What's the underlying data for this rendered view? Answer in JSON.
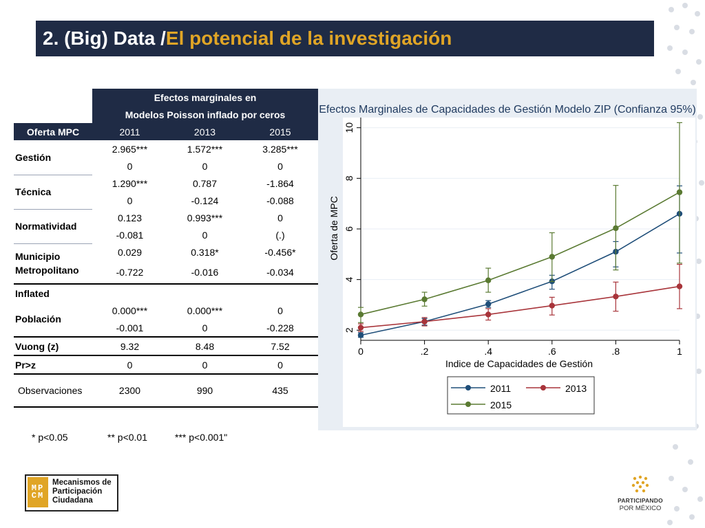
{
  "title": {
    "prefix": "2. (Big) Data / ",
    "accent": "El potencial de la investigación"
  },
  "table": {
    "header_line1": "Efectos marginales en",
    "header_line2": "Modelos Poisson inflado por ceros",
    "row_header": "Oferta MPC",
    "years": [
      "2011",
      "2013",
      "2015"
    ],
    "gestion": {
      "label": "Gestión",
      "coef": [
        "2.965***",
        "1.572***",
        "3.285***"
      ],
      "se": [
        "0",
        "0",
        "0"
      ]
    },
    "tecnica": {
      "label": "Técnica",
      "coef": [
        "1.290***",
        "0.787",
        "-1.864"
      ],
      "se": [
        "0",
        "-0.124",
        "-0.088"
      ]
    },
    "normatividad": {
      "label": "Normatividad",
      "coef": [
        "0.123",
        "0.993***",
        "0"
      ],
      "se": [
        "-0.081",
        "0",
        "(.)"
      ]
    },
    "municipio": {
      "label": "Municipio Metropolitano",
      "coef": [
        "0.029",
        "0.318*",
        "-0.456*"
      ],
      "se": [
        "-0.722",
        "-0.016",
        "-0.034"
      ]
    },
    "inflated": {
      "label": "Inflated"
    },
    "poblacion": {
      "label": "Población",
      "coef": [
        "0.000***",
        "0.000***",
        "0"
      ],
      "se": [
        "-0.001",
        "0",
        "-0.228"
      ]
    },
    "vuong": {
      "label": "Vuong (z)",
      "values": [
        "9.32",
        "8.48",
        "7.52"
      ]
    },
    "prz": {
      "label": "Pr>z",
      "values": [
        "0",
        "0",
        "0"
      ]
    },
    "observaciones": {
      "label": "Observaciones",
      "values": [
        "2300",
        "990",
        "435"
      ]
    }
  },
  "notes": {
    "n1": "* p<0.05",
    "n2": "** p<0.01",
    "n3": "*** p<0.001\""
  },
  "logos": {
    "mpcm_glyph": [
      "MP",
      "CM"
    ],
    "mpcm_line1": "Mecanismos de",
    "mpcm_line2": "Participación",
    "mpcm_line3": "Ciudadana",
    "ppm_line1": "PARTICIPANDO",
    "ppm_line2": "POR MÉXICO"
  },
  "colors": {
    "navy": "#1f2b45",
    "accent": "#e0a526",
    "s2011": "#1f4e79",
    "s2013": "#a8343a",
    "s2015": "#5a7a32"
  },
  "chart_data": {
    "type": "line",
    "title": "Efectos Marginales de Capacidades de Gestión Modelo ZIP (Confianza 95%)",
    "xlabel": "Indice de Capacidades de Gestión",
    "ylabel": "Oferta de MPC",
    "xlim": [
      0,
      1
    ],
    "ylim": [
      1.6,
      10.4
    ],
    "x": [
      0,
      0.2,
      0.4,
      0.6,
      0.8,
      1
    ],
    "xticks": [
      "0",
      ".2",
      ".4",
      ".6",
      ".8",
      "1"
    ],
    "xtick_values": [
      0,
      0.2,
      0.4,
      0.6,
      0.8,
      1
    ],
    "yticks": [
      "2",
      "4",
      "6",
      "8",
      "10"
    ],
    "ytick_values": [
      2,
      4,
      6,
      8,
      10
    ],
    "legend_position": "bottom",
    "series": [
      {
        "name": "2011",
        "color": "#1f4e79",
        "values": [
          1.8,
          2.34,
          3.03,
          3.93,
          5.1,
          6.6
        ],
        "lower": [
          1.72,
          2.2,
          2.9,
          3.62,
          4.5,
          5.05
        ],
        "upper": [
          1.9,
          2.46,
          3.17,
          4.17,
          5.5,
          7.7
        ]
      },
      {
        "name": "2013",
        "color": "#a8343a",
        "values": [
          2.1,
          2.34,
          2.62,
          2.97,
          3.33,
          3.73
        ],
        "lower": [
          1.95,
          2.17,
          2.4,
          2.6,
          2.75,
          2.85
        ],
        "upper": [
          2.25,
          2.5,
          2.85,
          3.3,
          3.9,
          4.6
        ]
      },
      {
        "name": "2015",
        "color": "#5a7a32",
        "values": [
          2.62,
          3.22,
          3.97,
          4.9,
          6.03,
          7.45
        ],
        "lower": [
          2.3,
          2.95,
          3.5,
          3.92,
          4.38,
          4.65
        ],
        "upper": [
          2.9,
          3.5,
          4.45,
          5.85,
          7.72,
          10.2
        ]
      }
    ]
  }
}
